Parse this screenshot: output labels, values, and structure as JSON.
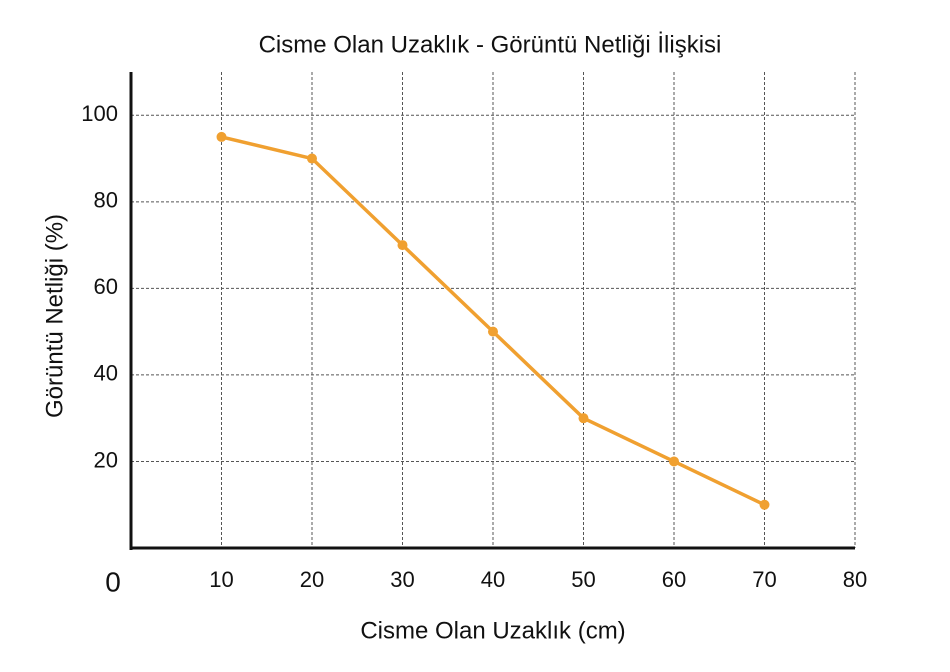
{
  "chart_data": {
    "type": "line",
    "title": "Cisme Olan Uzaklık - Görüntü Netliği İlişkisi",
    "x_label": "Cisme Olan Uzaklık (cm)",
    "y_label": "Görüntü Netliği (%)",
    "x": [
      10,
      20,
      30,
      40,
      50,
      60,
      70
    ],
    "series": [
      {
        "name": "Görüntü Netliği",
        "color": "#f0a030",
        "values": [
          95,
          90,
          70,
          50,
          30,
          20,
          10
        ]
      }
    ],
    "xlim": [
      0,
      80
    ],
    "xticks": [
      0,
      10,
      20,
      30,
      40,
      50,
      60,
      70,
      80
    ],
    "ylim": [
      0,
      110
    ],
    "yticks": [
      20,
      40,
      60,
      80,
      100
    ],
    "grid": true
  }
}
